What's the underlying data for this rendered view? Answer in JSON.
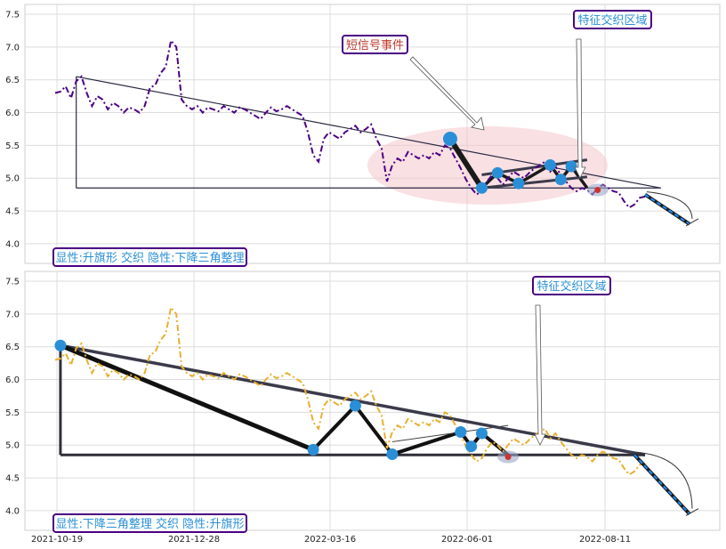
{
  "chart_data": [
    {
      "type": "line",
      "panel": "top",
      "ylim": [
        3.7,
        7.65
      ],
      "yticks": [
        4.0,
        4.5,
        5.0,
        5.5,
        6.0,
        6.5,
        7.0,
        7.5
      ],
      "grid": true,
      "colors": {
        "price": "#4b0082",
        "pattern": "#2b2b2b",
        "forecast": "#1e90ff",
        "bubble": "#2a8fd6",
        "ellipse": "#f4c6cc",
        "marker": "#cc3333"
      },
      "series": [
        {
          "values": [
            6.3,
            6.32,
            6.4,
            6.22,
            6.48,
            6.55,
            6.3,
            6.1,
            6.25,
            6.2,
            6.05,
            6.15,
            6.1,
            6.0,
            6.08,
            6.05,
            6.0,
            6.1,
            6.38,
            6.42,
            6.6,
            6.7,
            7.1,
            7.0,
            6.2,
            6.1,
            6.05,
            6.1,
            6.0,
            6.08,
            6.05,
            6.02,
            6.1,
            6.05,
            6.0,
            6.08,
            6.05,
            6.0,
            5.95,
            5.9,
            6.0,
            6.08,
            6.02,
            6.05,
            6.1,
            6.05,
            6.0,
            5.95,
            5.7,
            5.35,
            5.25,
            5.6,
            5.7,
            5.65,
            5.6,
            5.7,
            5.75,
            5.8,
            5.7,
            5.75,
            5.82,
            5.6,
            5.45,
            4.95,
            5.2,
            5.3,
            5.25,
            5.4,
            5.35,
            5.3,
            5.35,
            5.3,
            5.4,
            5.35,
            5.5,
            5.45,
            5.3,
            5.15,
            4.98,
            4.85,
            4.75,
            4.8,
            4.95,
            5.05,
            5.0,
            4.9,
            5.0,
            5.1,
            5.05,
            5.0,
            5.08,
            5.15,
            5.2,
            5.25,
            5.1,
            5.18,
            5.05,
            4.95,
            4.85,
            4.8,
            4.85,
            4.82,
            4.75,
            4.85,
            4.9,
            4.85,
            4.8,
            4.78,
            4.65,
            4.55,
            4.6,
            4.7,
            4.72
          ]
        }
      ],
      "annotations": [
        {
          "text": "短信号事件",
          "color": "#c0392b"
        },
        {
          "text": "特征交织区域",
          "color": "#2a8fd6"
        }
      ],
      "legend_text": "显性:升旗形 交织 隐性:下降三角整理"
    },
    {
      "type": "line",
      "panel": "bottom",
      "ylim": [
        3.7,
        7.65
      ],
      "yticks": [
        4.0,
        4.5,
        5.0,
        5.5,
        6.0,
        6.5,
        7.0,
        7.5
      ],
      "xticks": [
        "2021-10-19",
        "2021-12-28",
        "2022-03-16",
        "2022-06-01",
        "2022-08-11"
      ],
      "grid": true,
      "colors": {
        "price": "#e8b030",
        "pattern": "#2b2b2b",
        "forecast": "#1e90ff",
        "bubble": "#2a8fd6",
        "marker": "#cc3333"
      },
      "series": [
        {
          "values": [
            6.3,
            6.32,
            6.4,
            6.22,
            6.48,
            6.55,
            6.3,
            6.1,
            6.25,
            6.2,
            6.05,
            6.15,
            6.1,
            6.0,
            6.08,
            6.05,
            6.0,
            6.1,
            6.38,
            6.42,
            6.6,
            6.7,
            7.1,
            7.0,
            6.2,
            6.1,
            6.05,
            6.1,
            6.0,
            6.08,
            6.05,
            6.02,
            6.1,
            6.05,
            6.0,
            6.08,
            6.05,
            6.0,
            5.95,
            5.9,
            6.0,
            6.08,
            6.02,
            6.05,
            6.1,
            6.05,
            6.0,
            5.95,
            5.7,
            5.35,
            5.25,
            5.6,
            5.7,
            5.65,
            5.6,
            5.7,
            5.75,
            5.8,
            5.7,
            5.75,
            5.82,
            5.6,
            5.45,
            4.95,
            5.2,
            5.3,
            5.25,
            5.4,
            5.35,
            5.3,
            5.35,
            5.3,
            5.4,
            5.35,
            5.5,
            5.45,
            5.3,
            5.15,
            4.98,
            4.85,
            4.75,
            4.8,
            4.95,
            5.05,
            5.0,
            4.9,
            5.0,
            5.1,
            5.05,
            5.0,
            5.08,
            5.15,
            5.2,
            5.25,
            5.1,
            5.18,
            5.05,
            4.95,
            4.85,
            4.8,
            4.85,
            4.82,
            4.75,
            4.85,
            4.9,
            4.85,
            4.8,
            4.78,
            4.65,
            4.55,
            4.6,
            4.7,
            4.72
          ]
        }
      ],
      "annotations": [
        {
          "text": "特征交织区域",
          "color": "#2a8fd6"
        }
      ],
      "legend_text": "显性:下降三角整理 交织 隐性:升旗形"
    }
  ]
}
